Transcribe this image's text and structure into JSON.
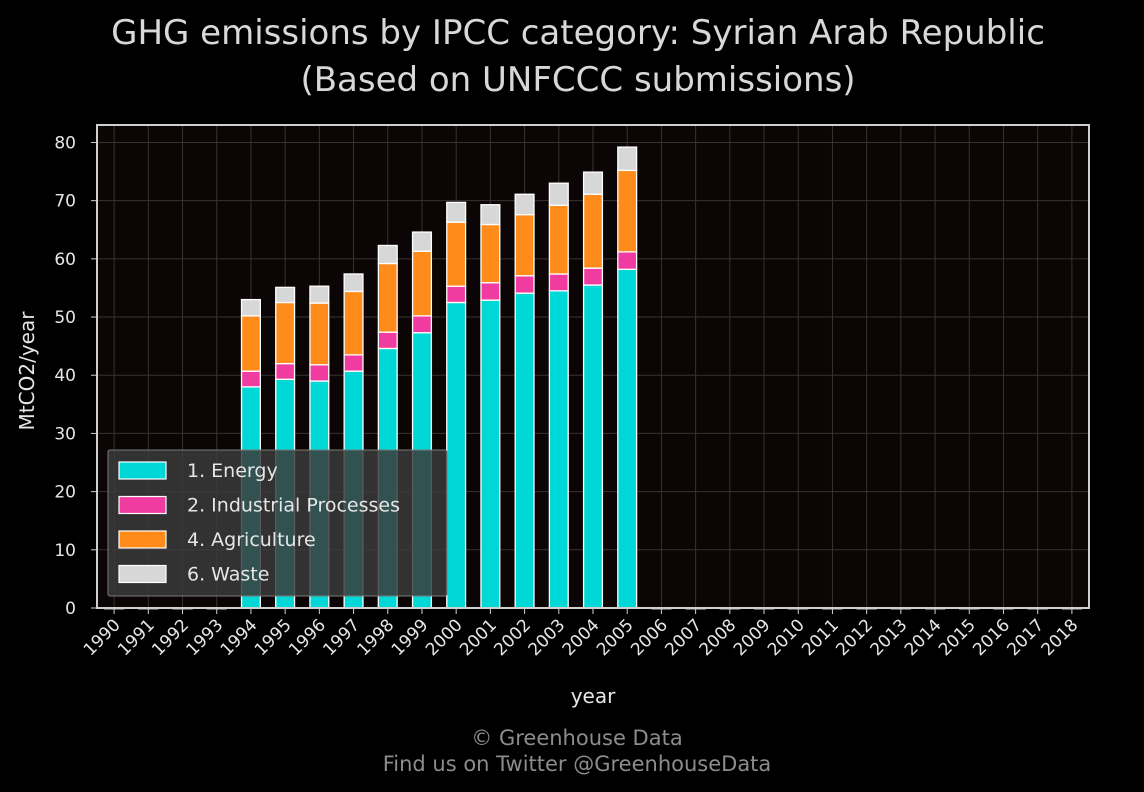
{
  "chart_data": {
    "type": "bar",
    "stacked": true,
    "title_line1": "GHG emissions by IPCC category: Syrian Arab Republic",
    "title_line2": "(Based on UNFCCC submissions)",
    "xlabel": "year",
    "ylabel": "MtCO2/year",
    "ylim": [
      0,
      83
    ],
    "yticks": [
      0,
      10,
      20,
      30,
      40,
      50,
      60,
      70,
      80
    ],
    "grid": true,
    "legend_position": "lower-left",
    "categories": [
      "1990",
      "1991",
      "1992",
      "1993",
      "1994",
      "1995",
      "1996",
      "1997",
      "1998",
      "1999",
      "2000",
      "2001",
      "2002",
      "2003",
      "2004",
      "2005",
      "2006",
      "2007",
      "2008",
      "2009",
      "2010",
      "2011",
      "2012",
      "2013",
      "2014",
      "2015",
      "2016",
      "2017",
      "2018"
    ],
    "series": [
      {
        "name": "1. Energy",
        "color": "#00d7d7",
        "values": [
          0,
          0,
          0,
          0,
          38.0,
          39.3,
          39.0,
          40.7,
          44.6,
          47.3,
          52.5,
          52.9,
          54.1,
          54.5,
          55.5,
          58.2,
          0,
          0,
          0,
          0,
          0,
          0,
          0,
          0,
          0,
          0,
          0,
          0,
          0
        ]
      },
      {
        "name": "2. Industrial Processes",
        "color": "#f03ca0",
        "values": [
          0,
          0,
          0,
          0,
          2.7,
          2.7,
          2.8,
          2.8,
          2.8,
          2.9,
          2.8,
          3.0,
          3.0,
          2.9,
          2.9,
          3.0,
          0,
          0,
          0,
          0,
          0,
          0,
          0,
          0,
          0,
          0,
          0,
          0,
          0
        ]
      },
      {
        "name": "4. Agriculture",
        "color": "#ff8c1a",
        "values": [
          0,
          0,
          0,
          0,
          9.5,
          10.5,
          10.6,
          10.9,
          11.8,
          11.1,
          11.0,
          10.0,
          10.5,
          11.8,
          12.7,
          14.0,
          0,
          0,
          0,
          0,
          0,
          0,
          0,
          0,
          0,
          0,
          0,
          0,
          0
        ]
      },
      {
        "name": "6. Waste",
        "color": "#d7d7d7",
        "values": [
          0,
          0,
          0,
          0,
          2.8,
          2.6,
          2.9,
          3.0,
          3.1,
          3.3,
          3.4,
          3.4,
          3.5,
          3.8,
          3.8,
          4.0,
          0,
          0,
          0,
          0,
          0,
          0,
          0,
          0,
          0,
          0,
          0,
          0,
          0
        ]
      }
    ]
  },
  "footer": {
    "line1": "© Greenhouse Data",
    "line2": "Find us on Twitter @GreenhouseData"
  }
}
